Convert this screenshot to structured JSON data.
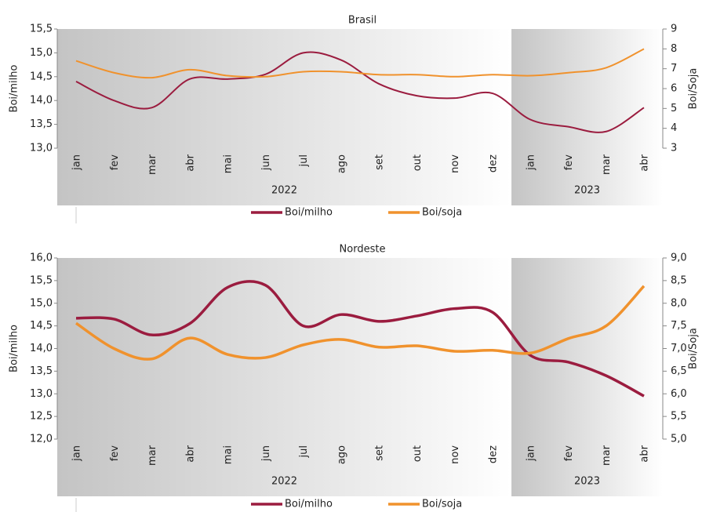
{
  "chart_data": [
    {
      "type": "line",
      "title": "Brasil",
      "ylabel": "Boi/milho",
      "y2label": "Boi/Soja",
      "categories": [
        "jan",
        "fev",
        "mar",
        "abr",
        "mai",
        "jun",
        "jul",
        "ago",
        "set",
        "out",
        "nov",
        "dez",
        "jan",
        "fev",
        "mar",
        "abr"
      ],
      "groups": [
        "2022",
        "2023"
      ],
      "ylim": [
        13.0,
        15.5
      ],
      "yticks": [
        {
          "value": 13.0,
          "label": "13,0"
        },
        {
          "value": 13.5,
          "label": "13,5"
        },
        {
          "value": 14.0,
          "label": "14,0"
        },
        {
          "value": 14.5,
          "label": "14,5"
        },
        {
          "value": 15.0,
          "label": "15,0"
        },
        {
          "value": 15.5,
          "label": "15,5"
        }
      ],
      "y2lim": [
        3,
        9
      ],
      "y2ticks": [
        3,
        4,
        5,
        6,
        7,
        8,
        9
      ],
      "line_width": 2,
      "series": [
        {
          "name": "Boi/milho",
          "color": "#9b1c3f",
          "values": [
            14.4,
            14.0,
            13.85,
            14.45,
            14.45,
            14.55,
            15.0,
            14.85,
            14.35,
            14.1,
            14.05,
            14.15,
            13.6,
            13.45,
            13.35,
            13.85
          ]
        },
        {
          "name": "Boi/soja",
          "color": "#f0922d",
          "axis": "y2",
          "values": [
            7.4,
            6.8,
            6.55,
            6.95,
            6.65,
            6.6,
            6.85,
            6.85,
            6.7,
            6.7,
            6.6,
            6.7,
            6.65,
            6.8,
            7.05,
            8.0
          ]
        }
      ]
    },
    {
      "type": "line",
      "title": "Nordeste",
      "ylabel": "Boi/milho",
      "y2label": "Boi/Soja",
      "categories": [
        "jan",
        "fev",
        "mar",
        "abr",
        "mai",
        "jun",
        "jul",
        "ago",
        "set",
        "out",
        "nov",
        "dez",
        "jan",
        "fev",
        "mar",
        "abr"
      ],
      "groups": [
        "2022",
        "2023"
      ],
      "ylim": [
        12.0,
        16.0
      ],
      "yticks": [
        {
          "value": 12.0,
          "label": "12,0"
        },
        {
          "value": 12.5,
          "label": "12,5"
        },
        {
          "value": 13.0,
          "label": "13,0"
        },
        {
          "value": 13.5,
          "label": "13,5"
        },
        {
          "value": 14.0,
          "label": "14,0"
        },
        {
          "value": 14.5,
          "label": "14,5"
        },
        {
          "value": 15.0,
          "label": "15,0"
        },
        {
          "value": 15.5,
          "label": "15,5"
        },
        {
          "value": 16.0,
          "label": "16,0"
        }
      ],
      "y2lim": [
        5.0,
        9.0
      ],
      "y2ticks": [
        {
          "value": 5.0,
          "label": "5,0"
        },
        {
          "value": 5.5,
          "label": "5,5"
        },
        {
          "value": 6.0,
          "label": "6,0"
        },
        {
          "value": 6.5,
          "label": "6,5"
        },
        {
          "value": 7.0,
          "label": "7,0"
        },
        {
          "value": 7.5,
          "label": "7,5"
        },
        {
          "value": 8.0,
          "label": "8,0"
        },
        {
          "value": 8.5,
          "label": "8,5"
        },
        {
          "value": 9.0,
          "label": "9,0"
        }
      ],
      "line_width": 3.5,
      "series": [
        {
          "name": "Boi/milho",
          "color": "#9b1c3f",
          "values": [
            14.67,
            14.65,
            14.3,
            14.55,
            15.35,
            15.4,
            14.5,
            14.75,
            14.6,
            14.72,
            14.88,
            14.8,
            13.85,
            13.7,
            13.4,
            12.95
          ]
        },
        {
          "name": "Boi/soja",
          "color": "#f0922d",
          "axis": "y2",
          "values": [
            7.56,
            7.0,
            6.77,
            7.23,
            6.87,
            6.8,
            7.08,
            7.2,
            7.03,
            7.06,
            6.94,
            6.96,
            6.9,
            7.22,
            7.5,
            8.38
          ]
        }
      ]
    }
  ]
}
